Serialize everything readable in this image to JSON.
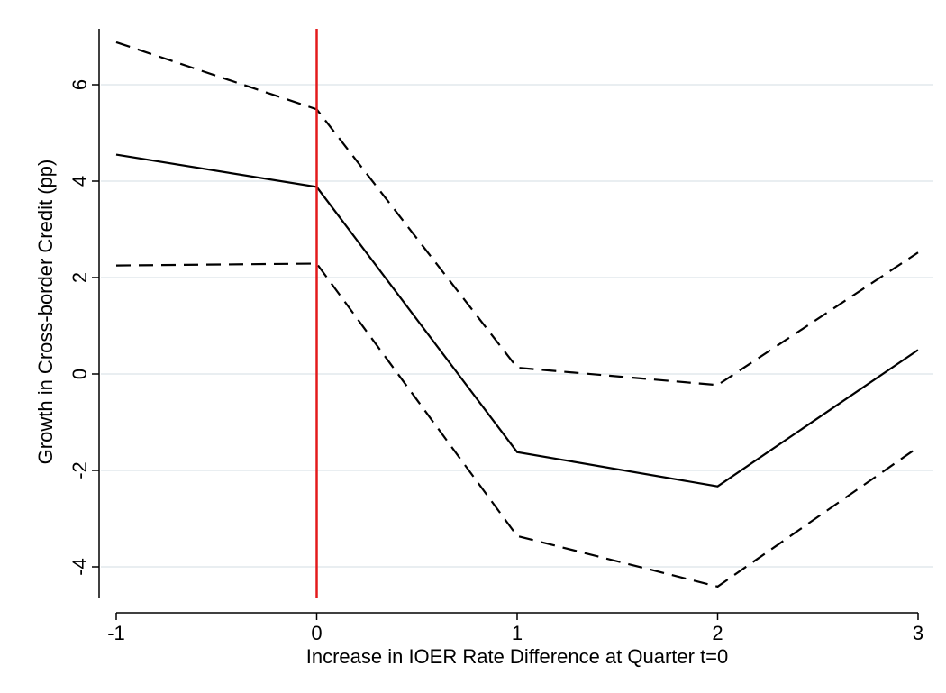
{
  "chart_data": {
    "type": "line",
    "title": "",
    "xlabel": "Increase in IOER Rate Difference at Quarter t=0",
    "ylabel": "Growth in Cross-border Credit (pp)",
    "x": [
      -1,
      0,
      1,
      2,
      3
    ],
    "xlim": [
      -1,
      3
    ],
    "ylim": [
      -4.6,
      7.2
    ],
    "xticks": [
      -1,
      0,
      1,
      2,
      3
    ],
    "yticks": [
      -4,
      -2,
      0,
      2,
      4,
      6
    ],
    "grid": "horizontal",
    "series": [
      {
        "style": "solid",
        "color": "#000000",
        "values": [
          4.55,
          3.88,
          -1.62,
          -2.33,
          0.5
        ]
      },
      {
        "style": "dashed",
        "color": "#000000",
        "values": [
          6.88,
          5.49,
          0.13,
          -0.23,
          2.52
        ]
      },
      {
        "style": "dashed",
        "color": "#000000",
        "values": [
          2.25,
          2.29,
          -3.36,
          -4.41,
          -1.52
        ]
      }
    ],
    "reference_line": {
      "x": 0,
      "color": "#e31a1c"
    },
    "grid_color": "#e9eef1"
  }
}
